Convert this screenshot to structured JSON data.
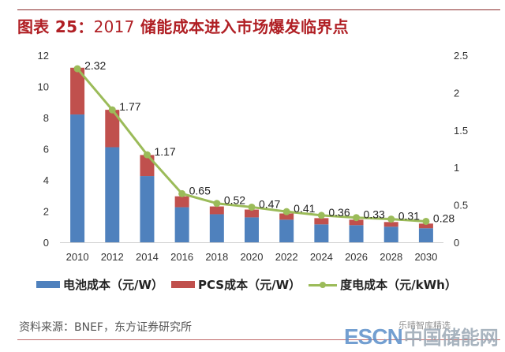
{
  "title": {
    "prefix": "图表 25：",
    "year": "2017",
    "text": " 储能成本进入市场爆发临界点"
  },
  "chart_data": {
    "type": "bar",
    "stacked": true,
    "title": "图表 25：2017 储能成本进入市场爆发临界点",
    "categories": [
      "2010",
      "2012",
      "2014",
      "2016",
      "2018",
      "2020",
      "2022",
      "2024",
      "2026",
      "2028",
      "2030"
    ],
    "series": [
      {
        "name": "电池成本（元/W）",
        "kind": "bar",
        "axis": "left",
        "color": "#4f81bd",
        "values": [
          8.2,
          6.1,
          4.25,
          2.25,
          1.8,
          1.6,
          1.45,
          1.15,
          1.1,
          1.0,
          0.9
        ]
      },
      {
        "name": "PCS成本（元/W）",
        "kind": "bar",
        "axis": "left",
        "color": "#c0504d",
        "values": [
          3.0,
          2.4,
          1.35,
          0.7,
          0.5,
          0.5,
          0.4,
          0.4,
          0.35,
          0.3,
          0.3
        ]
      },
      {
        "name": "度电成本（元/kWh）",
        "kind": "line",
        "axis": "right",
        "color": "#9bbb59",
        "values": [
          2.32,
          1.77,
          1.17,
          0.65,
          0.52,
          0.47,
          0.41,
          0.36,
          0.33,
          0.31,
          0.28
        ],
        "labels": [
          "2.32",
          "1.77",
          "1.17",
          "0.65",
          "0.52",
          "0.47",
          "0.41",
          "0.36",
          "0.33",
          "0.31",
          "0.28"
        ]
      }
    ],
    "y_left": {
      "min": 0,
      "max": 12,
      "ticks": [
        "0",
        "2",
        "4",
        "6",
        "8",
        "10",
        "12"
      ]
    },
    "y_right": {
      "min": 0,
      "max": 2.5,
      "ticks": [
        "0",
        "0.5",
        "1",
        "1.5",
        "2",
        "2.5"
      ]
    },
    "xlabel": "",
    "ylabel": "",
    "grid": false,
    "legend_position": "bottom"
  },
  "legend": [
    {
      "label": "电池成本（元/W）",
      "color": "#4f81bd"
    },
    {
      "label": "PCS成本（元/W）",
      "color": "#c0504d"
    },
    {
      "label": "度电成本（元/kWh）",
      "color": "#9bbb59"
    }
  ],
  "source": "资料来源：BNEF，东方证券研究所",
  "watermark": {
    "brand": "ESCN",
    "cn": "中国储能网",
    "account": "乐晴智库精选"
  }
}
